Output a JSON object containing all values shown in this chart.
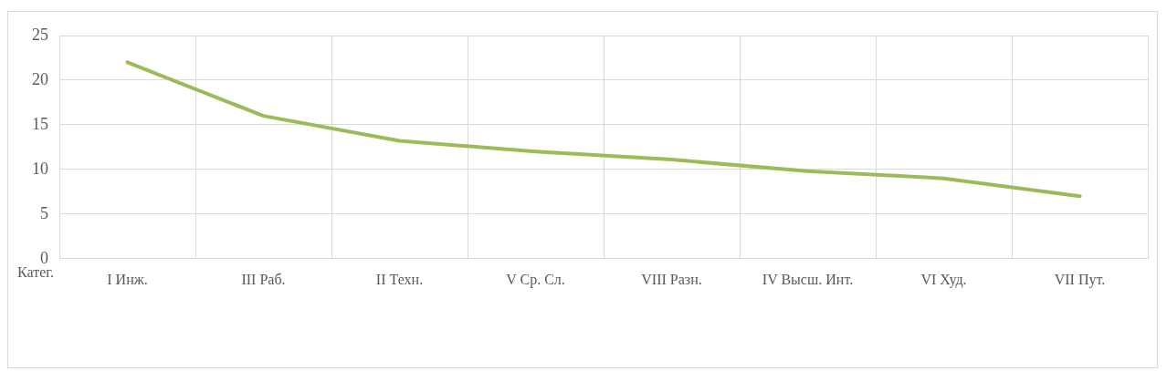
{
  "chart_data": {
    "type": "line",
    "xlabel": "Катег.",
    "categories": [
      "I Инж.",
      "III Раб.",
      "II Техн.",
      "V Ср. Сл.",
      "VIII Разн.",
      "IV Высш. Инт.",
      "VI Худ.",
      "VII Пут."
    ],
    "series": [
      {
        "color": "#9bbb59",
        "values": [
          22,
          16,
          13.2,
          12,
          11.1,
          9.8,
          9,
          7
        ]
      }
    ],
    "ylim": [
      0,
      25
    ],
    "yticks": [
      0,
      5,
      10,
      15,
      20,
      25
    ],
    "grid": true,
    "marker": "none",
    "line_style": "solid",
    "legend": false
  }
}
